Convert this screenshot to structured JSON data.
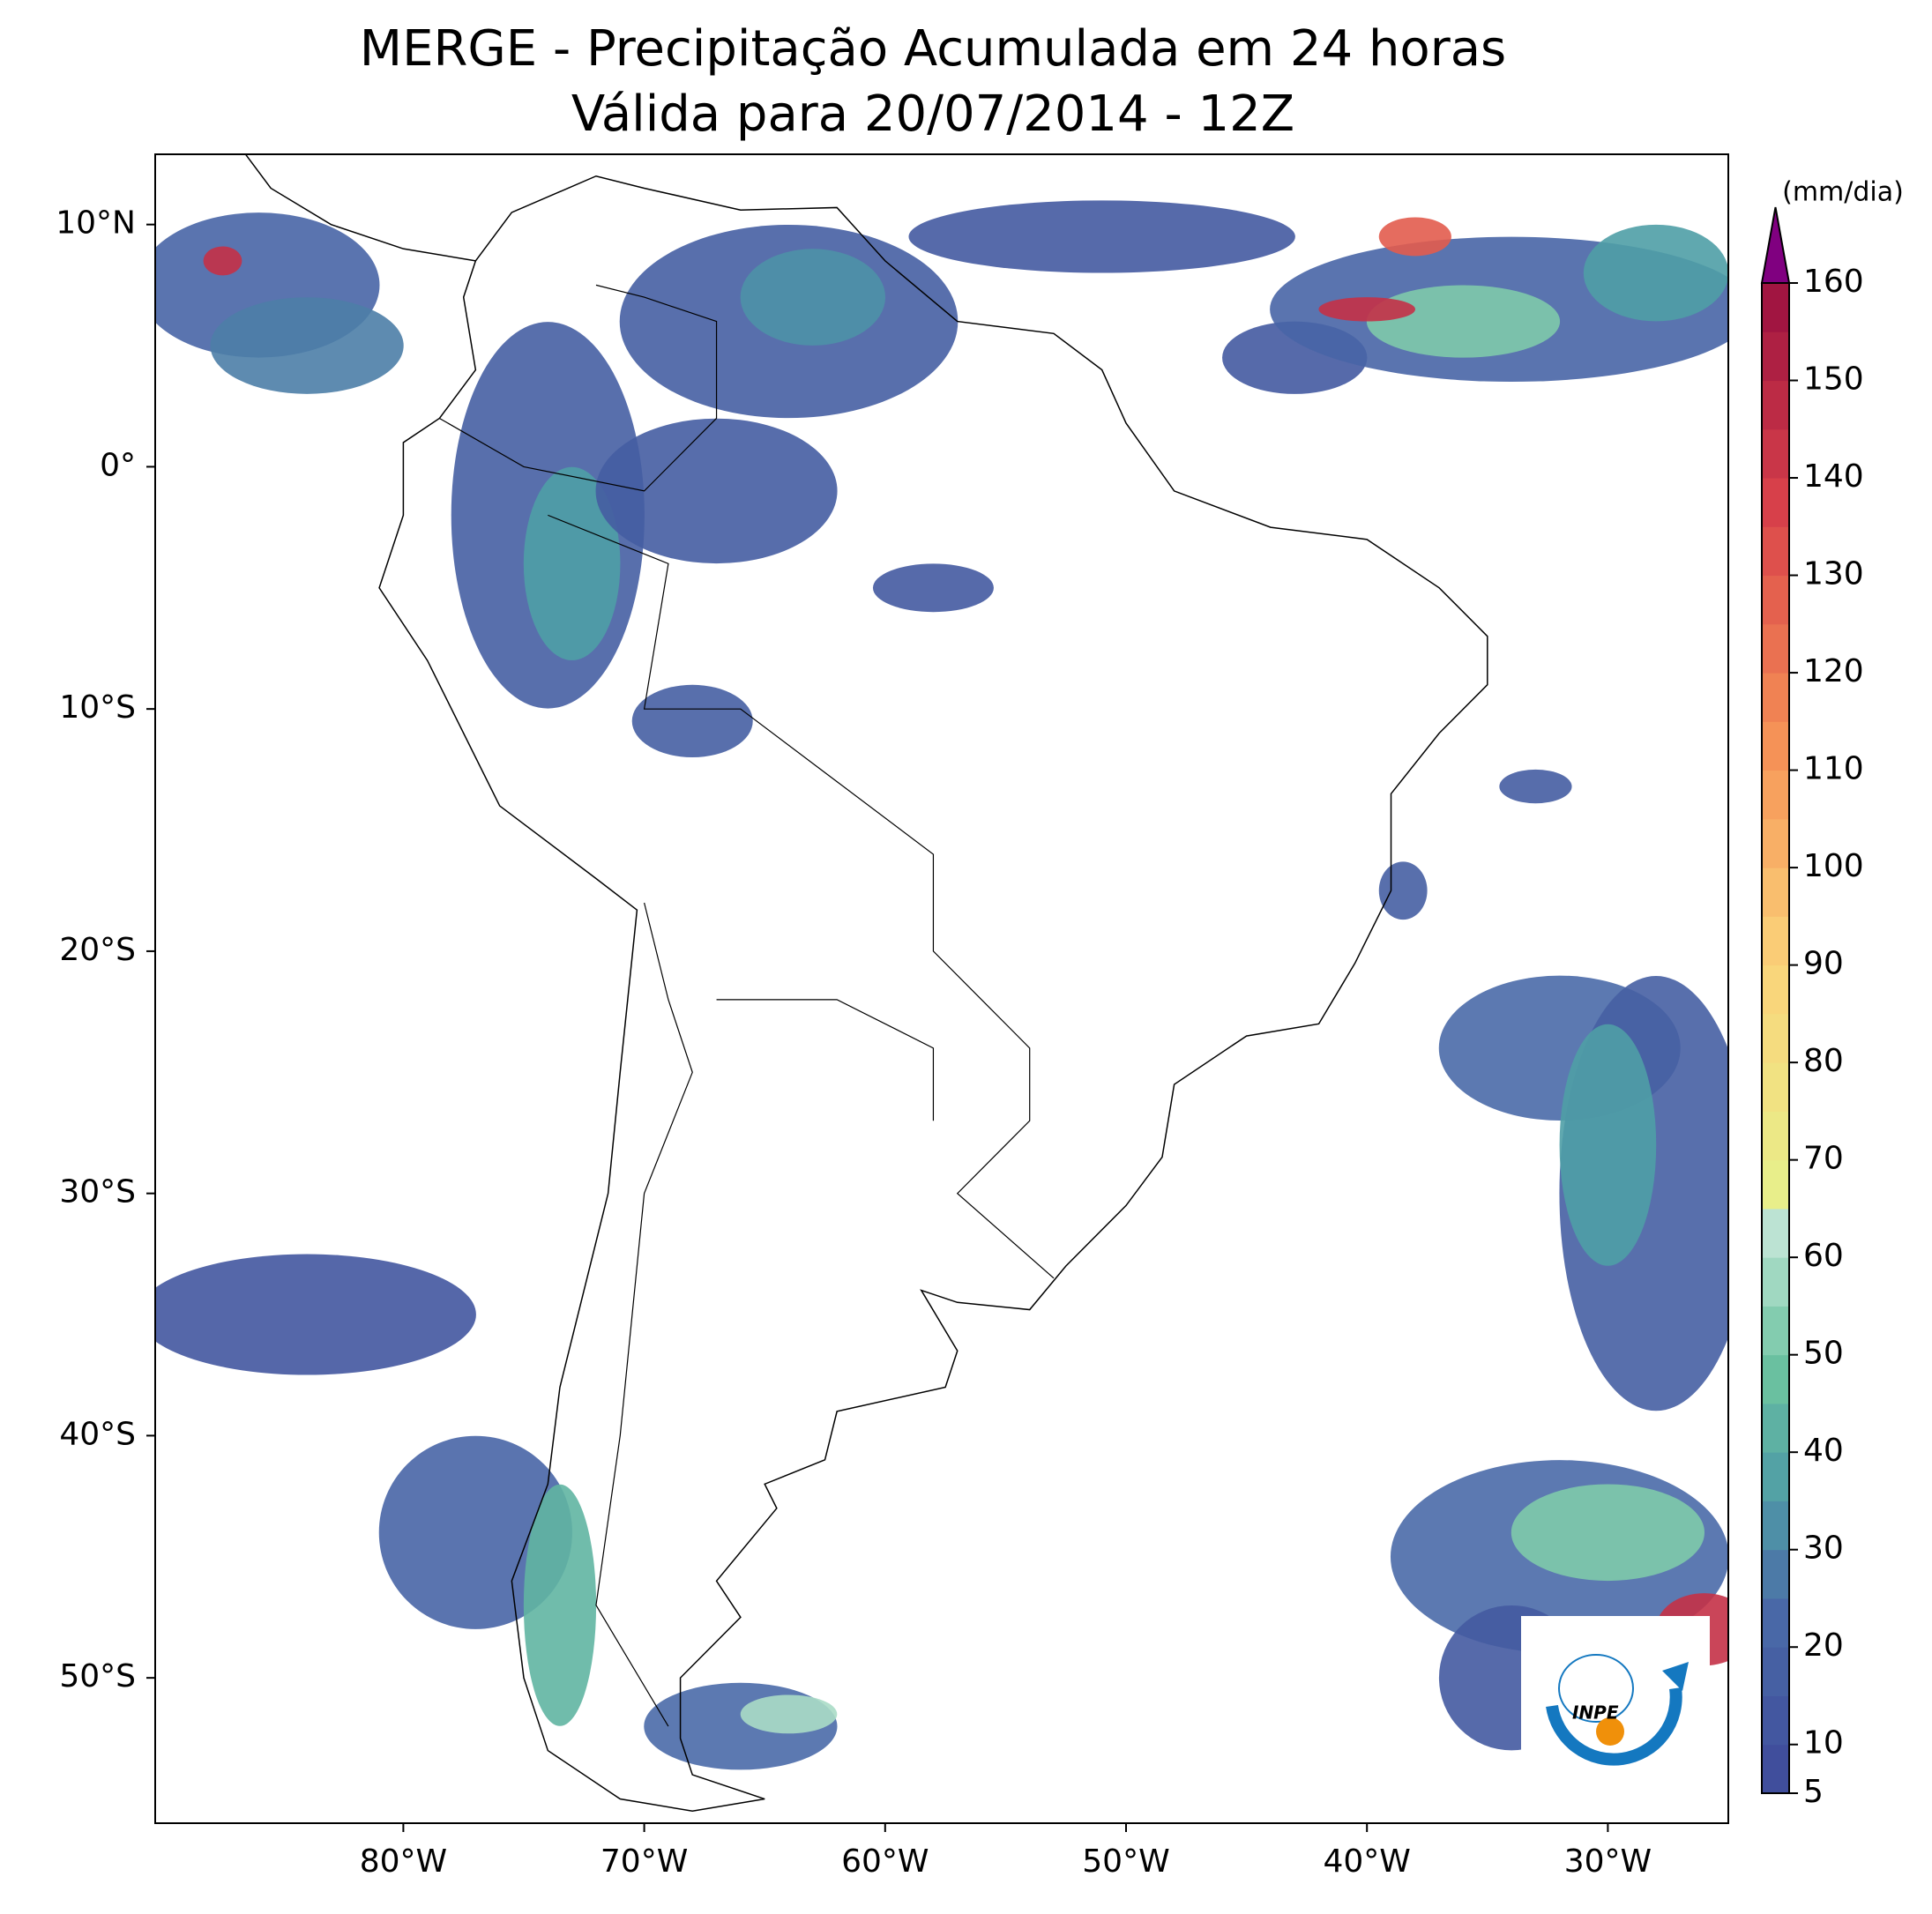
{
  "header": {
    "title": [
      "MERGE - Precipitação Acumulada em 24 horas",
      "Válida para 20/07/2014 - 12Z"
    ]
  },
  "map": {
    "xlim": [
      -90.3,
      -25
    ],
    "ylim": [
      -56,
      12.9
    ],
    "xticks": [
      {
        "value": -80,
        "label": "80°W"
      },
      {
        "value": -70,
        "label": "70°W"
      },
      {
        "value": -60,
        "label": "60°W"
      },
      {
        "value": -50,
        "label": "50°W"
      },
      {
        "value": -40,
        "label": "40°W"
      },
      {
        "value": -30,
        "label": "30°W"
      }
    ],
    "yticks": [
      {
        "value": 10,
        "label": "10°N"
      },
      {
        "value": 0,
        "label": "0°"
      },
      {
        "value": -10,
        "label": "10°S"
      },
      {
        "value": -20,
        "label": "20°S"
      },
      {
        "value": -30,
        "label": "30°S"
      },
      {
        "value": -40,
        "label": "40°S"
      },
      {
        "value": -50,
        "label": "50°S"
      }
    ]
  },
  "colorbar": {
    "label": "(mm/dia)",
    "lim": [
      5,
      160
    ],
    "ticks": [
      5,
      10,
      20,
      30,
      40,
      50,
      60,
      70,
      80,
      90,
      100,
      110,
      120,
      130,
      140,
      150,
      160
    ]
  },
  "logo": {
    "text": "INPE"
  }
}
